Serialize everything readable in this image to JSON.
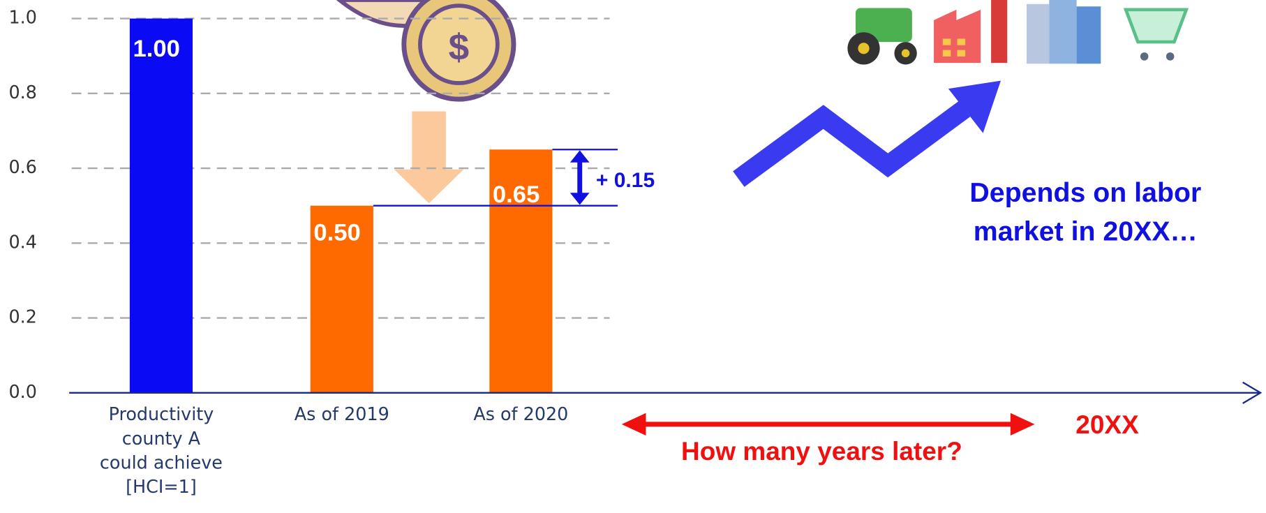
{
  "chart_data": {
    "type": "bar",
    "categories": [
      "Productivity county A could achieve [HCI=1]",
      "As of 2019",
      "As of 2020"
    ],
    "values": [
      1.0,
      0.5,
      0.65
    ],
    "value_labels": [
      "1.00",
      "0.50",
      "0.65"
    ],
    "colors": [
      "#0a0af5",
      "#ff6a00",
      "#ff6a00"
    ],
    "ylim": [
      0,
      1
    ],
    "yticks": [
      {
        "value": 0,
        "label": "0.0"
      },
      0.2,
      0.4,
      0.6,
      0.8,
      {
        "value": 1,
        "label": "1.0"
      }
    ],
    "grid": true,
    "annotations": {
      "difference": "+ 0.15",
      "labor_market": "Depends on labor market in 20XX…",
      "years_later": "How many years later?",
      "future_year": "20XX"
    }
  }
}
